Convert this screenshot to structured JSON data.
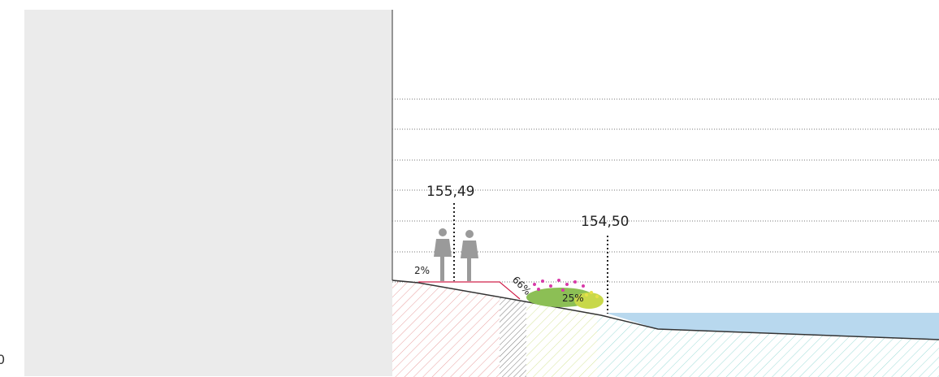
{
  "elevations": [
    {
      "label": "155,49"
    },
    {
      "label": "154,50"
    }
  ],
  "slopes": [
    {
      "label": "2%"
    },
    {
      "label": "66%"
    },
    {
      "label": "25%"
    }
  ],
  "edge_label": "0"
}
